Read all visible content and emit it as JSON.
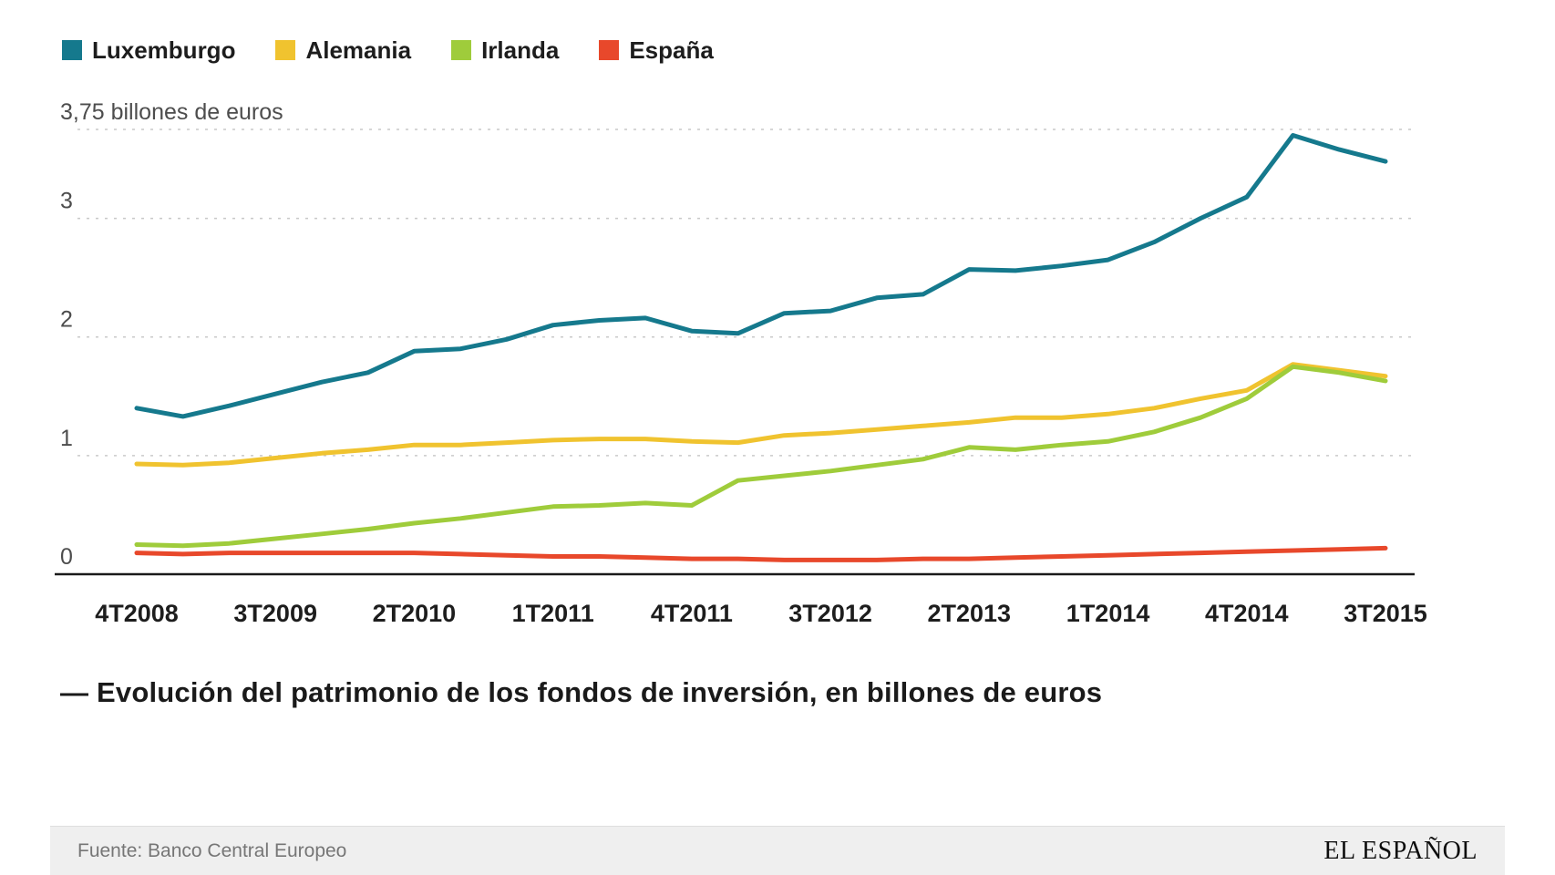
{
  "legend": {
    "items": [
      {
        "label": "Luxemburgo",
        "color": "#15798d"
      },
      {
        "label": "Alemania",
        "color": "#f0c32f"
      },
      {
        "label": "Irlanda",
        "color": "#9fcc3b"
      },
      {
        "label": "España",
        "color": "#e8482b"
      }
    ]
  },
  "chart_data": {
    "type": "line",
    "title": "Evolución del patrimonio de los fondos de inversión, en billones de euros",
    "ylabel": "billones de euros",
    "ylim": [
      0,
      3.75
    ],
    "grid": "dashed-horizontal",
    "legend_position": "top-left",
    "n_points": 28,
    "y_ticks": [
      {
        "value": 0,
        "label": "0"
      },
      {
        "value": 1,
        "label": "1"
      },
      {
        "value": 2,
        "label": "2"
      },
      {
        "value": 3,
        "label": "3"
      },
      {
        "value": 3.75,
        "label": "3,75 billones de euros"
      }
    ],
    "x_ticks": {
      "labels": [
        "4T2008",
        "3T2009",
        "2T2010",
        "1T2011",
        "4T2011",
        "3T2012",
        "2T2013",
        "1T2014",
        "4T2014",
        "3T2015"
      ],
      "indices": [
        0,
        3,
        6,
        9,
        12,
        15,
        18,
        21,
        24,
        27
      ]
    },
    "series": [
      {
        "name": "Luxemburgo",
        "color": "#15798d",
        "values": [
          1.4,
          1.33,
          1.42,
          1.52,
          1.62,
          1.7,
          1.88,
          1.9,
          1.98,
          2.1,
          2.14,
          2.16,
          2.05,
          2.03,
          2.2,
          2.22,
          2.33,
          2.36,
          2.57,
          2.56,
          2.6,
          2.65,
          2.8,
          3.0,
          3.18,
          3.7,
          3.58,
          3.48
        ]
      },
      {
        "name": "Alemania",
        "color": "#f0c32f",
        "values": [
          0.93,
          0.92,
          0.94,
          0.98,
          1.02,
          1.05,
          1.09,
          1.09,
          1.11,
          1.13,
          1.14,
          1.14,
          1.12,
          1.11,
          1.17,
          1.19,
          1.22,
          1.25,
          1.28,
          1.32,
          1.32,
          1.35,
          1.4,
          1.48,
          1.55,
          1.77,
          1.72,
          1.67
        ]
      },
      {
        "name": "Irlanda",
        "color": "#9fcc3b",
        "values": [
          0.25,
          0.24,
          0.26,
          0.3,
          0.34,
          0.38,
          0.43,
          0.47,
          0.52,
          0.57,
          0.58,
          0.6,
          0.58,
          0.79,
          0.83,
          0.87,
          0.92,
          0.97,
          1.07,
          1.05,
          1.09,
          1.12,
          1.2,
          1.32,
          1.48,
          1.75,
          1.7,
          1.63
        ]
      },
      {
        "name": "España",
        "color": "#e8482b",
        "values": [
          0.18,
          0.17,
          0.18,
          0.18,
          0.18,
          0.18,
          0.18,
          0.17,
          0.16,
          0.15,
          0.15,
          0.14,
          0.13,
          0.13,
          0.12,
          0.12,
          0.12,
          0.13,
          0.13,
          0.14,
          0.15,
          0.16,
          0.17,
          0.18,
          0.19,
          0.2,
          0.21,
          0.22
        ]
      }
    ]
  },
  "title": "— Evolución del patrimonio de los fondos de inversión, en billones de euros",
  "footer": {
    "source": "Fuente: Banco Central Europeo",
    "brand": "EL ESPAÑOL"
  }
}
